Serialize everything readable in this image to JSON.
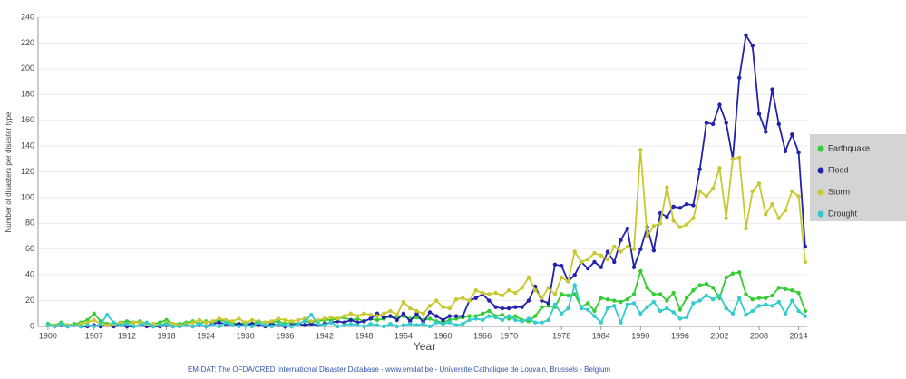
{
  "chart_data": {
    "type": "line",
    "x_label": "Year",
    "y_label": "Number of disasters per disaster type",
    "source": "EM-DAT: The OFDA/CRED International Disaster Database - www.emdat.be - Universite Catholique de Louvain, Brussels - Belgium",
    "x": [
      1900,
      1901,
      1902,
      1903,
      1904,
      1905,
      1906,
      1907,
      1908,
      1909,
      1910,
      1911,
      1912,
      1913,
      1914,
      1915,
      1916,
      1917,
      1918,
      1919,
      1920,
      1921,
      1922,
      1923,
      1924,
      1925,
      1926,
      1927,
      1928,
      1929,
      1930,
      1931,
      1932,
      1933,
      1934,
      1935,
      1936,
      1937,
      1938,
      1939,
      1940,
      1941,
      1942,
      1943,
      1944,
      1945,
      1946,
      1947,
      1948,
      1949,
      1950,
      1951,
      1952,
      1953,
      1954,
      1955,
      1956,
      1957,
      1958,
      1959,
      1960,
      1961,
      1962,
      1963,
      1964,
      1965,
      1966,
      1967,
      1968,
      1969,
      1970,
      1971,
      1972,
      1973,
      1974,
      1975,
      1976,
      1977,
      1978,
      1979,
      1980,
      1981,
      1982,
      1983,
      1984,
      1985,
      1986,
      1987,
      1988,
      1989,
      1990,
      1991,
      1992,
      1993,
      1994,
      1995,
      1996,
      1997,
      1998,
      1999,
      2000,
      2001,
      2002,
      2003,
      2004,
      2005,
      2006,
      2007,
      2008,
      2009,
      2010,
      2011,
      2012,
      2013,
      2014,
      2015
    ],
    "series": [
      {
        "name": "Earthquake",
        "color": "#33cc33",
        "values": [
          2,
          1,
          3,
          1,
          2,
          3,
          5,
          10,
          4,
          2,
          2,
          3,
          4,
          3,
          4,
          2,
          2,
          3,
          5,
          2,
          2,
          3,
          4,
          2,
          4,
          3,
          5,
          4,
          3,
          2,
          3,
          2,
          4,
          3,
          3,
          4,
          2,
          3,
          2,
          4,
          3,
          4,
          5,
          5,
          6,
          7,
          5,
          6,
          4,
          6,
          5,
          6,
          8,
          7,
          8,
          6,
          7,
          5,
          6,
          4,
          3,
          5,
          6,
          7,
          8,
          8,
          10,
          12,
          8,
          9,
          6,
          8,
          5,
          4,
          8,
          15,
          16,
          15,
          25,
          24,
          25,
          15,
          18,
          12,
          22,
          21,
          20,
          19,
          21,
          25,
          43,
          30,
          25,
          25,
          20,
          26,
          13,
          22,
          28,
          32,
          33,
          30,
          22,
          38,
          41,
          42,
          25,
          21,
          22,
          22,
          24,
          30,
          29,
          28,
          26,
          12
        ]
      },
      {
        "name": "Flood",
        "color": "#2222aa",
        "values": [
          1,
          0,
          1,
          0,
          1,
          0,
          0,
          1,
          0,
          1,
          0,
          1,
          0,
          0,
          1,
          0,
          0,
          0,
          1,
          0,
          0,
          1,
          0,
          1,
          0,
          2,
          3,
          2,
          1,
          2,
          1,
          2,
          1,
          0,
          2,
          1,
          0,
          1,
          2,
          1,
          2,
          1,
          2,
          3,
          4,
          3,
          5,
          3,
          4,
          6,
          10,
          7,
          8,
          5,
          10,
          4,
          10,
          3,
          11,
          8,
          5,
          8,
          8,
          8,
          20,
          22,
          25,
          20,
          15,
          14,
          14,
          15,
          15,
          20,
          31,
          20,
          18,
          48,
          47,
          35,
          40,
          50,
          45,
          50,
          46,
          58,
          50,
          67,
          76,
          46,
          60,
          77,
          59,
          88,
          85,
          93,
          92,
          95,
          94,
          122,
          158,
          157,
          172,
          158,
          130,
          193,
          226,
          218,
          165,
          151,
          184,
          157,
          136,
          149,
          135,
          62
        ]
      },
      {
        "name": "Storm",
        "color": "#c8c830",
        "values": [
          1,
          1,
          2,
          1,
          1,
          2,
          3,
          5,
          2,
          1,
          2,
          3,
          2,
          3,
          3,
          2,
          2,
          1,
          3,
          2,
          1,
          2,
          3,
          5,
          3,
          4,
          6,
          5,
          4,
          6,
          3,
          5,
          4,
          3,
          4,
          6,
          5,
          4,
          5,
          6,
          4,
          5,
          6,
          7,
          6,
          8,
          10,
          8,
          10,
          9,
          8,
          10,
          12,
          9,
          19,
          14,
          12,
          10,
          16,
          20,
          15,
          14,
          21,
          22,
          20,
          28,
          26,
          25,
          26,
          24,
          28,
          26,
          30,
          38,
          28,
          22,
          30,
          25,
          38,
          35,
          58,
          50,
          52,
          57,
          55,
          52,
          62,
          58,
          62,
          60,
          137,
          70,
          78,
          80,
          108,
          82,
          77,
          79,
          84,
          105,
          101,
          107,
          123,
          84,
          130,
          131,
          76,
          105,
          111,
          87,
          95,
          84,
          90,
          105,
          101,
          50
        ]
      },
      {
        "name": "Drought",
        "color": "#33cccc",
        "values": [
          1,
          0,
          2,
          0,
          1,
          0,
          1,
          0,
          2,
          9,
          3,
          1,
          2,
          0,
          1,
          3,
          0,
          1,
          2,
          0,
          0,
          1,
          0,
          2,
          0,
          1,
          0,
          3,
          1,
          0,
          1,
          0,
          3,
          1,
          0,
          2,
          1,
          0,
          2,
          4,
          9,
          2,
          1,
          3,
          0,
          1,
          2,
          1,
          0,
          2,
          1,
          0,
          2,
          0,
          1,
          2,
          1,
          2,
          0,
          3,
          2,
          3,
          1,
          2,
          5,
          6,
          5,
          8,
          7,
          5,
          8,
          5,
          4,
          6,
          3,
          3,
          5,
          17,
          10,
          14,
          32,
          14,
          13,
          8,
          3,
          14,
          16,
          3,
          17,
          18,
          10,
          15,
          19,
          12,
          14,
          11,
          6,
          7,
          18,
          20,
          24,
          21,
          24,
          14,
          10,
          22,
          9,
          12,
          16,
          17,
          16,
          19,
          10,
          20,
          12,
          8
        ]
      }
    ],
    "xlim": [
      1898.5,
      2015.3
    ],
    "xticks": [
      1900,
      1907,
      1912,
      1918,
      1924,
      1930,
      1936,
      1942,
      1948,
      1954,
      1960,
      1966,
      1970,
      1978,
      1984,
      1990,
      1996,
      2002,
      2008,
      2014
    ],
    "ylim": [
      0,
      240
    ],
    "yticks": [
      0,
      20,
      40,
      60,
      80,
      100,
      120,
      140,
      160,
      180,
      200,
      220,
      240
    ],
    "grid": true,
    "legend": "right"
  }
}
